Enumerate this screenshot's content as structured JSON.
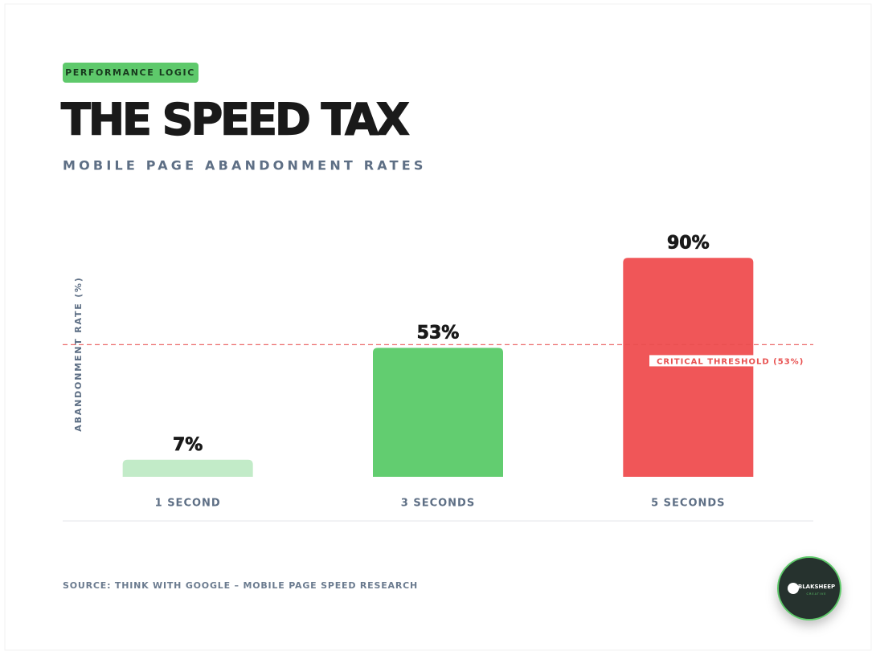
{
  "badge": "PERFORMANCE LOGIC",
  "chart_data": {
    "type": "bar",
    "title": "THE SPEED TAX",
    "subtitle": "MOBILE PAGE ABANDONMENT RATES",
    "y_label": "ABANDONMENT RATE (%)",
    "categories": [
      "1 SECOND",
      "3 SECONDS",
      "5 SECONDS"
    ],
    "values": [
      7,
      53,
      90
    ],
    "value_labels": [
      "7%",
      "53%",
      "90%"
    ],
    "colors": [
      "#c2ebc8",
      "#62cd70",
      "#f05658"
    ],
    "ylim": [
      0,
      100
    ],
    "threshold": {
      "value": 53,
      "label": "CRITICAL THRESHOLD (53%)",
      "color": "#e8504f"
    }
  },
  "source": "SOURCE: THINK WITH GOOGLE – MOBILE PAGE SPEED RESEARCH",
  "logo": {
    "name": "BLAKSHEEP",
    "tagline": "CREATIVE"
  }
}
